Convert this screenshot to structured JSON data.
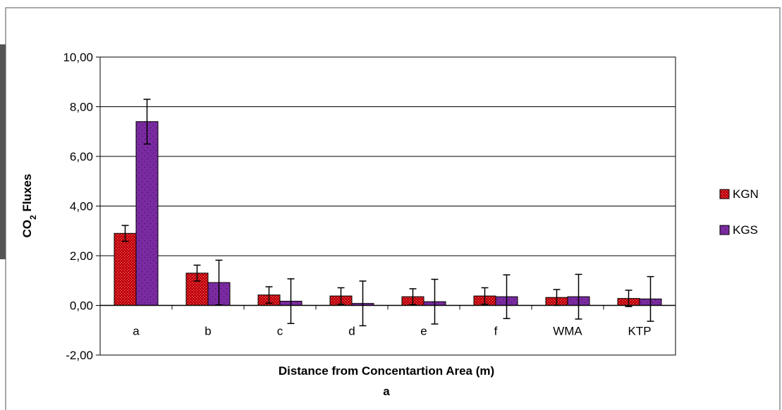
{
  "chart_data": {
    "type": "bar",
    "title": "",
    "caption": "a",
    "xlabel": "Distance from Concentartion Area (m)",
    "ylabel_main": "CO",
    "ylabel_sub": "2",
    "ylabel_rest": " Fluxes",
    "ylim": [
      -2,
      10
    ],
    "yticks": [
      -2,
      0,
      2,
      4,
      6,
      8,
      10
    ],
    "ytick_labels": [
      "-2,00",
      "0,00",
      "2,00",
      "4,00",
      "6,00",
      "8,00",
      "10,00"
    ],
    "grid": true,
    "legend_position": "right",
    "categories": [
      "a",
      "b",
      "c",
      "d",
      "e",
      "f",
      "WMA",
      "KTP"
    ],
    "series": [
      {
        "name": "KGN",
        "color": "#c0000a",
        "pattern": "dense dots",
        "values": [
          2.9,
          1.3,
          0.42,
          0.38,
          0.35,
          0.38,
          0.32,
          0.28
        ],
        "errors": [
          0.32,
          0.32,
          0.33,
          0.33,
          0.32,
          0.33,
          0.32,
          0.33
        ]
      },
      {
        "name": "KGS",
        "color": "#7a2aa0",
        "pattern": "sparse dots",
        "values": [
          7.4,
          0.92,
          0.17,
          0.08,
          0.15,
          0.35,
          0.35,
          0.26
        ],
        "errors": [
          0.9,
          0.9,
          0.9,
          0.9,
          0.9,
          0.88,
          0.9,
          0.9
        ]
      }
    ]
  }
}
